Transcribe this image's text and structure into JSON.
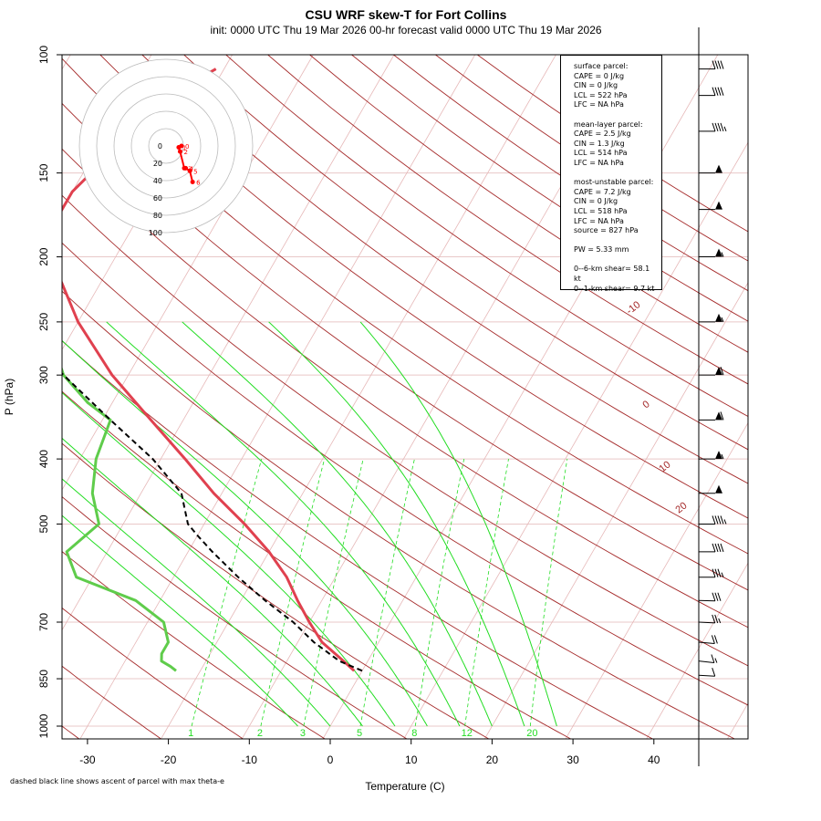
{
  "title": "CSU WRF skew-T for Fort Collins",
  "subtitle": "init: 0000 UTC Thu 19 Mar 2026     00-hr forecast valid 0000 UTC Thu 19 Mar 2026",
  "footnote": "dashed black line shows ascent of parcel with max theta-e",
  "info_box": {
    "surface_header": "surface parcel:",
    "surface_cape": "CAPE = 0 J/kg",
    "surface_cin": "CIN = 0 J/kg",
    "surface_lcl": "LCL = 522 hPa",
    "surface_lfc": "LFC = NA hPa",
    "mean_header": "mean-layer parcel:",
    "mean_cape": "CAPE = 2.5 J/kg",
    "mean_cin": "CIN = 1.3 J/kg",
    "mean_lcl": "LCL = 514 hPa",
    "mean_lfc": "LFC = NA hPa",
    "mu_header": "most-unstable parcel:",
    "mu_cape": "CAPE = 7.2 J/kg",
    "mu_cin": "CIN = 0 J/kg",
    "mu_lcl": "LCL = 518 hPa",
    "mu_lfc": "LFC = NA hPa",
    "mu_source": "source = 827 hPa",
    "pw": "PW =  5.33 mm",
    "shear_06": "0--6-km shear= 58.1 kt",
    "shear_01": "0--1-km shear= 9.7 kt"
  },
  "chart_data": {
    "type": "skew-T log-P diagram",
    "xlabel": "Temperature (C)",
    "ylabel": "P (hPa)",
    "x_ticks": [
      -30,
      -20,
      -10,
      0,
      10,
      20,
      30,
      40
    ],
    "y_ticks": [
      100,
      150,
      200,
      250,
      300,
      400,
      500,
      700,
      850,
      1000
    ],
    "xlim": [
      -33,
      46
    ],
    "ylim": [
      1050,
      100
    ],
    "isotherm_labels": [
      "-10",
      "0",
      "10",
      "20",
      "30",
      "40",
      "50"
    ],
    "mixing_ratio_labels": [
      "1",
      "2",
      "3",
      "5",
      "8",
      "12",
      "20"
    ],
    "hodograph_ring_labels": [
      "0",
      "20",
      "40",
      "60",
      "80",
      "100"
    ],
    "hodograph_height_labels": [
      "0",
      "1",
      "2",
      "3",
      "4",
      "5",
      "6"
    ],
    "colors": {
      "temperature": "#e0414f",
      "dewpoint": "#5fcc4b",
      "isotherm": "#a52a2a",
      "dry_adiabat": "#a52a2a",
      "moist_adiabat": "#22dd22",
      "mixing_ratio": "#22dd22",
      "parcel": "#000000",
      "hodograph": "#ff0000"
    },
    "temperature_profile": {
      "name": "temperature",
      "pressure_hPa": [
        827,
        800,
        750,
        700,
        650,
        600,
        550,
        500,
        450,
        400,
        350,
        300,
        250,
        200,
        180,
        160,
        150,
        130,
        110,
        105
      ],
      "temp_C": [
        -1,
        -3,
        -7,
        -10,
        -13,
        -16,
        -20,
        -25,
        -31,
        -37,
        -44,
        -52,
        -60,
        -68,
        -70,
        -70,
        -69,
        -66,
        -63,
        -61
      ]
    },
    "dewpoint_profile": {
      "name": "dewpoint",
      "pressure_hPa": [
        827,
        815,
        800,
        780,
        750,
        700,
        650,
        600,
        550,
        500,
        450,
        400,
        350,
        330,
        300,
        250,
        200,
        185
      ],
      "dewpoint_C": [
        -23,
        -24,
        -25.5,
        -26,
        -26,
        -28,
        -33,
        -42,
        -45,
        -43,
        -46,
        -48,
        -49,
        -53,
        -58,
        -64,
        -72,
        -73
      ]
    },
    "parcel_profile": {
      "name": "parcel ascent (max theta-e)",
      "pressure_hPa": [
        827,
        800,
        750,
        700,
        650,
        600,
        550,
        520,
        500,
        450,
        400,
        350,
        300,
        250,
        200,
        170,
        150,
        130,
        110,
        105
      ],
      "temp_C": [
        0,
        -3.5,
        -8,
        -12,
        -17,
        -22,
        -27,
        -30,
        -32,
        -35,
        -41,
        -49,
        -58,
        -68,
        -80,
        -87,
        -91,
        -95,
        -98,
        -99
      ]
    },
    "wind_barbs": [
      {
        "pressure_hPa": 840,
        "speed_kt": 10,
        "dir_deg": 260
      },
      {
        "pressure_hPa": 800,
        "speed_kt": 15,
        "dir_deg": 250
      },
      {
        "pressure_hPa": 750,
        "speed_kt": 20,
        "dir_deg": 255
      },
      {
        "pressure_hPa": 700,
        "speed_kt": 25,
        "dir_deg": 260
      },
      {
        "pressure_hPa": 650,
        "speed_kt": 30,
        "dir_deg": 265
      },
      {
        "pressure_hPa": 600,
        "speed_kt": 35,
        "dir_deg": 270
      },
      {
        "pressure_hPa": 550,
        "speed_kt": 40,
        "dir_deg": 270
      },
      {
        "pressure_hPa": 500,
        "speed_kt": 45,
        "dir_deg": 270
      },
      {
        "pressure_hPa": 450,
        "speed_kt": 50,
        "dir_deg": 270
      },
      {
        "pressure_hPa": 400,
        "speed_kt": 55,
        "dir_deg": 270
      },
      {
        "pressure_hPa": 350,
        "speed_kt": 60,
        "dir_deg": 270
      },
      {
        "pressure_hPa": 300,
        "speed_kt": 60,
        "dir_deg": 270
      },
      {
        "pressure_hPa": 250,
        "speed_kt": 55,
        "dir_deg": 270
      },
      {
        "pressure_hPa": 200,
        "speed_kt": 55,
        "dir_deg": 270
      },
      {
        "pressure_hPa": 170,
        "speed_kt": 50,
        "dir_deg": 270
      },
      {
        "pressure_hPa": 150,
        "speed_kt": 50,
        "dir_deg": 270
      },
      {
        "pressure_hPa": 130,
        "speed_kt": 45,
        "dir_deg": 270
      },
      {
        "pressure_hPa": 115,
        "speed_kt": 40,
        "dir_deg": 270
      },
      {
        "pressure_hPa": 105,
        "speed_kt": 40,
        "dir_deg": 270
      }
    ],
    "hodograph": {
      "u_kt": [
        -2,
        -4,
        -3,
        0,
        1,
        4,
        6
      ],
      "v_kt": [
        0,
        -1,
        -4,
        -16,
        -16,
        -18,
        -26
      ]
    }
  }
}
